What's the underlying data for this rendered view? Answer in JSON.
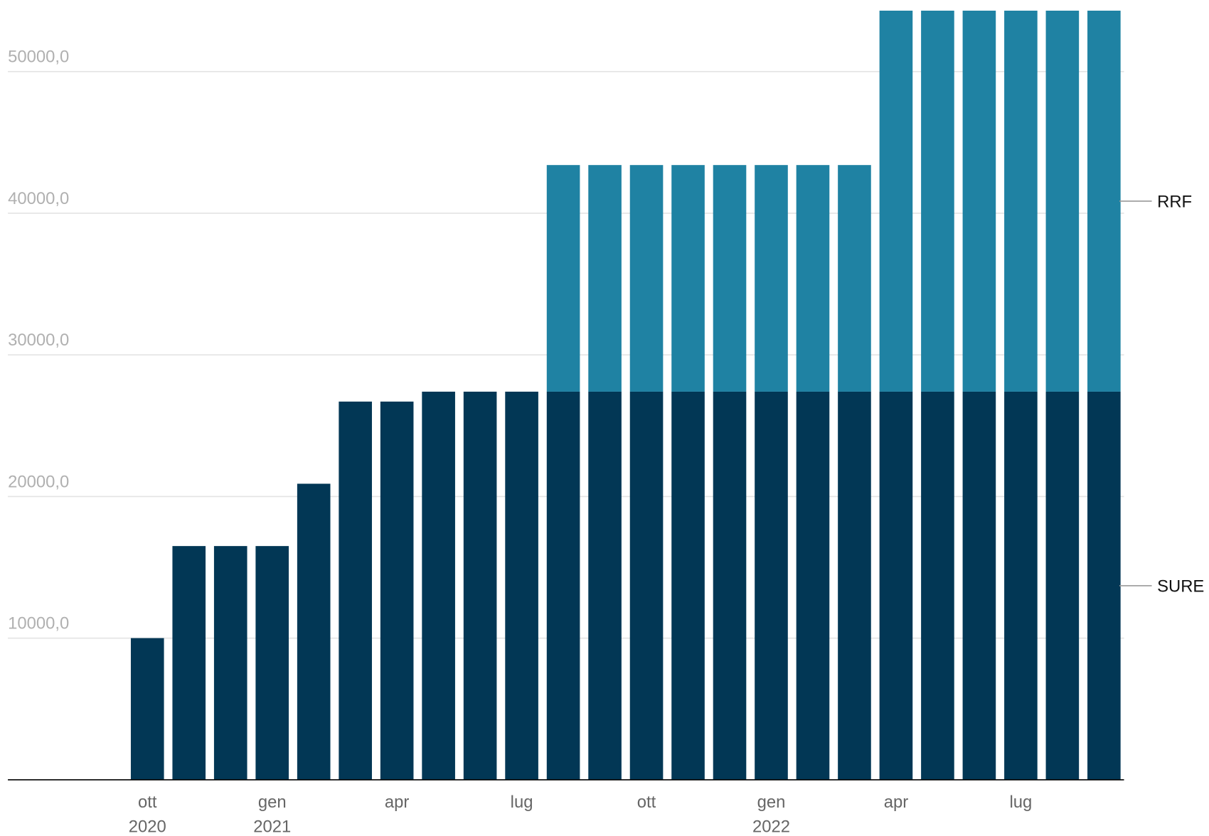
{
  "chart_data": {
    "type": "stacked_bar",
    "categories": [
      "ott 2020",
      null,
      null,
      "gen 2021",
      null,
      null,
      "apr",
      null,
      null,
      "lug",
      null,
      null,
      "ott",
      null,
      null,
      "gen 2022",
      null,
      null,
      "apr",
      null,
      null,
      "lug",
      null,
      null
    ],
    "series": [
      {
        "name": "SURE",
        "color": "#023755",
        "values": [
          10000,
          16500,
          16500,
          16500,
          20900,
          26700,
          26700,
          27400,
          27400,
          27400,
          27400,
          27400,
          27400,
          27400,
          27400,
          27400,
          27400,
          27400,
          27400,
          27400,
          27400,
          27400,
          27400,
          27400
        ]
      },
      {
        "name": "RRF",
        "color": "#1f82a3",
        "values": [
          null,
          null,
          null,
          null,
          null,
          null,
          null,
          null,
          null,
          null,
          16000,
          16000,
          16000,
          16000,
          16000,
          16000,
          16000,
          16000,
          26900,
          26900,
          26900,
          26900,
          26900,
          26900
        ]
      }
    ],
    "ylim": [
      0,
      54400
    ],
    "yticks": [
      {
        "value": 10000,
        "label": "10000,0"
      },
      {
        "value": 20000,
        "label": "20000,0"
      },
      {
        "value": 30000,
        "label": "30000,0"
      },
      {
        "value": 40000,
        "label": "40000,0"
      },
      {
        "value": 50000,
        "label": "50000,0"
      }
    ],
    "grid": true
  }
}
